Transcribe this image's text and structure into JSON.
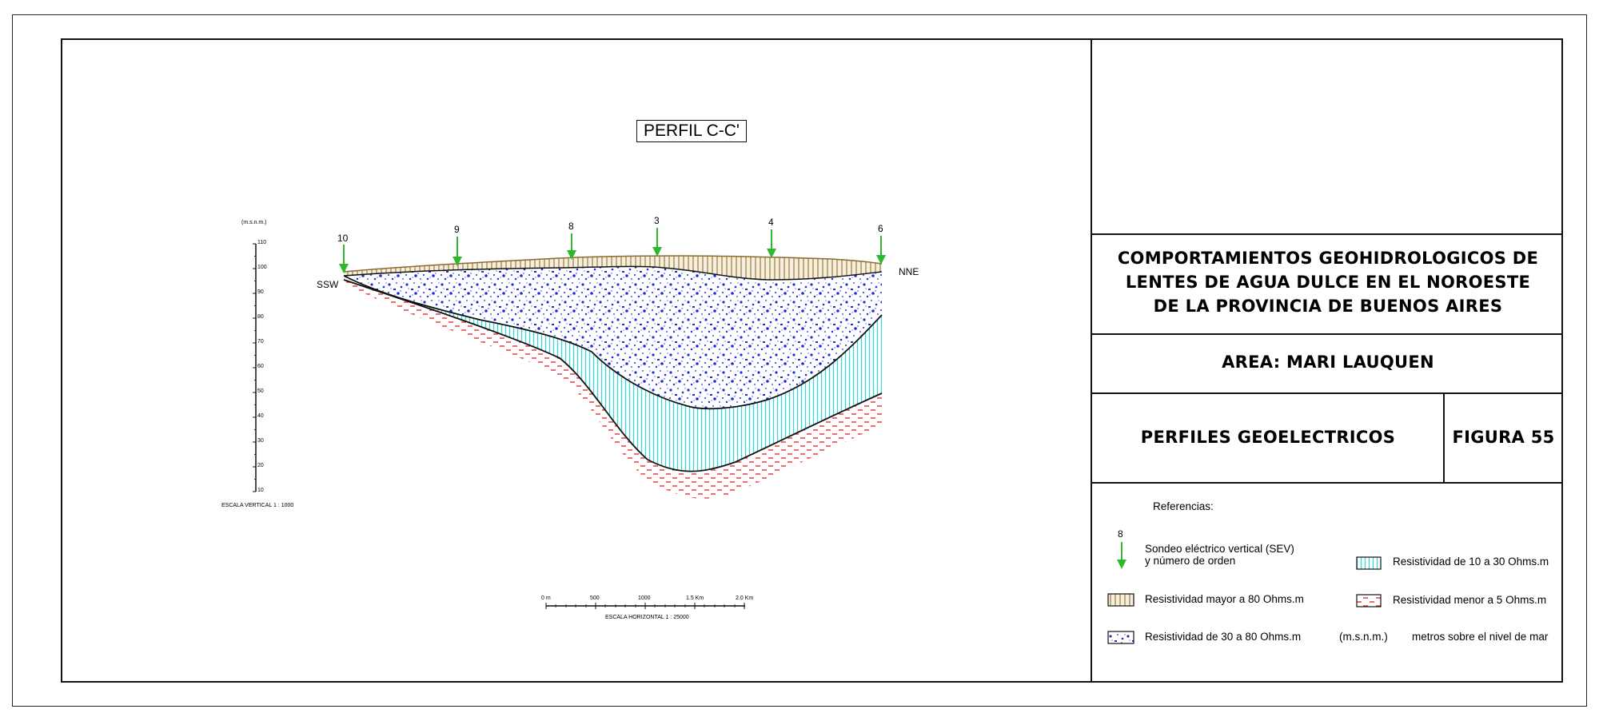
{
  "profile": {
    "title": "PERFIL C-C'",
    "left_label": "SSW",
    "right_label": "NNE",
    "sev_labels": [
      "10",
      "9",
      "8",
      "3",
      "4",
      "6"
    ],
    "vertical_scale": {
      "unit_label": "(m.s.n.m.)",
      "ticks": [
        "110",
        "100",
        "90",
        "80",
        "70",
        "60",
        "50",
        "40",
        "30",
        "20",
        "10"
      ],
      "caption": "ESCALA VERTICAL 1 : 1000"
    },
    "horizontal_scale": {
      "ticks": [
        "0 m",
        "500",
        "1000",
        "1.5 Km",
        "2.0 Km"
      ],
      "caption": "ESCALA HORIZONTAL 1 : 25000"
    }
  },
  "title_block": {
    "main_title_lines": [
      "COMPORTAMIENTOS GEOHIDROLOGICOS DE",
      "LENTES DE AGUA DULCE EN EL NOROESTE",
      "DE LA PROVINCIA DE BUENOS AIRES"
    ],
    "area": "AREA: MARI LAUQUEN",
    "section": "PERFILES GEOELECTRICOS",
    "figure": "FIGURA 55"
  },
  "legend": {
    "heading": "Referencias:",
    "sev_number": "8",
    "sev_text_line1": "Sondeo eléctrico vertical (SEV)",
    "sev_text_line2": "y número de orden",
    "items": [
      {
        "text": "Resistividad de 10 a 30 Ohms.m"
      },
      {
        "text": "Resistividad mayor a 80 Ohms.m"
      },
      {
        "text": "Resistividad menor a 5 Ohms.m"
      },
      {
        "text": "Resistividad de 30 a 80 Ohms.m"
      }
    ],
    "abbr": "(m.s.n.m.)",
    "abbr_meaning": "metros sobre el nivel de mar"
  },
  "colors": {
    "arrow": "#2db82d",
    "high_res": "#b8965a",
    "mid_res": "#1a2ee0",
    "low_mid_res": "#40d8d8",
    "low_res": "#e83030"
  }
}
